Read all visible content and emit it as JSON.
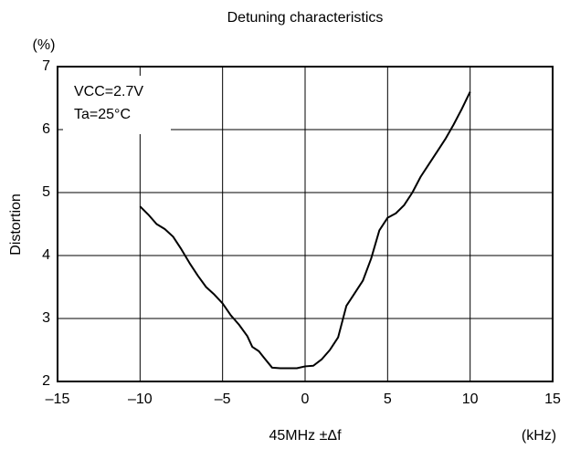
{
  "chart_data": {
    "type": "line",
    "title": "Detuning characteristics",
    "x_label": "45MHz ±Δf",
    "x_unit": "(kHz)",
    "y_label": "Distortion",
    "y_unit": "(%)",
    "annotations": [
      "VCC=2.7V",
      "Ta=25°C"
    ],
    "xlim": [
      -15,
      15
    ],
    "xticks": [
      {
        "value": -15,
        "label": "–15"
      },
      {
        "value": -10,
        "label": "–10"
      },
      {
        "value": -5,
        "label": "–5"
      },
      0,
      5,
      10,
      15
    ],
    "ylim": [
      2,
      7
    ],
    "yticks": [
      2,
      3,
      4,
      5,
      6,
      7
    ],
    "grid": true,
    "x": [
      -10,
      -9.5,
      -9,
      -8.5,
      -8,
      -7.5,
      -7,
      -6.5,
      -6,
      -5.5,
      -5,
      -4.5,
      -4,
      -3.5,
      -3.2,
      -2.8,
      -2.5,
      -2,
      -1.5,
      -1,
      -0.5,
      0,
      0.5,
      1,
      1.5,
      2,
      2.5,
      3,
      3.5,
      4,
      4.5,
      5,
      5.5,
      6,
      6.5,
      7,
      7.5,
      8,
      8.5,
      9,
      9.5,
      10
    ],
    "series": [
      {
        "name": "Distortion",
        "color": "#000000",
        "values": [
          4.78,
          4.65,
          4.5,
          4.42,
          4.3,
          4.1,
          3.88,
          3.68,
          3.5,
          3.38,
          3.24,
          3.05,
          2.9,
          2.72,
          2.55,
          2.48,
          2.38,
          2.22,
          2.21,
          2.21,
          2.21,
          2.24,
          2.25,
          2.35,
          2.5,
          2.7,
          3.2,
          3.4,
          3.6,
          3.95,
          4.4,
          4.6,
          4.67,
          4.8,
          5.0,
          5.25,
          5.45,
          5.65,
          5.85,
          6.08,
          6.33,
          6.6
        ]
      }
    ]
  }
}
